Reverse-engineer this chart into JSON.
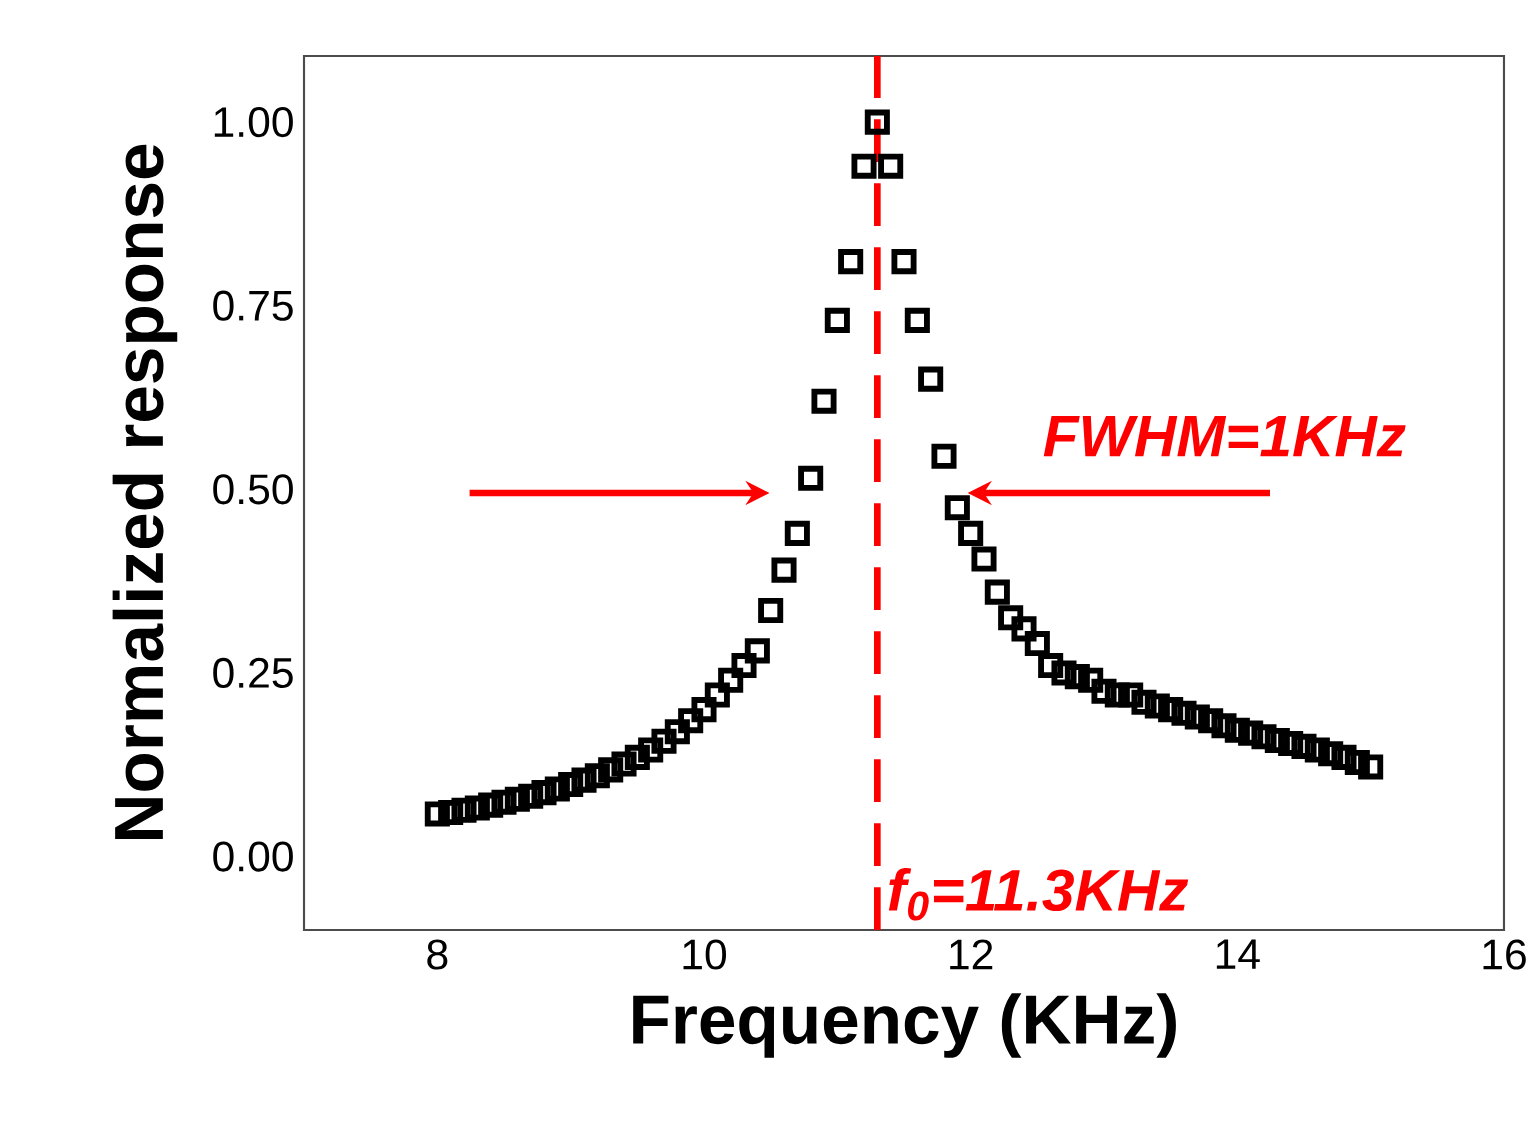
{
  "chart_data": {
    "type": "scatter",
    "xlabel": "Frequency (KHz)",
    "ylabel": "Normalized response",
    "x": [
      8.0,
      8.1,
      8.2,
      8.3,
      8.4,
      8.5,
      8.6,
      8.7,
      8.8,
      8.9,
      9.0,
      9.1,
      9.2,
      9.3,
      9.4,
      9.5,
      9.6,
      9.7,
      9.8,
      9.9,
      10.0,
      10.1,
      10.2,
      10.3,
      10.4,
      10.5,
      10.6,
      10.7,
      10.8,
      10.9,
      11.0,
      11.1,
      11.2,
      11.3,
      11.4,
      11.5,
      11.6,
      11.7,
      11.8,
      11.9,
      12.0,
      12.1,
      12.2,
      12.3,
      12.4,
      12.5,
      12.6,
      12.7,
      12.8,
      12.9,
      13.0,
      13.1,
      13.2,
      13.3,
      13.4,
      13.5,
      13.6,
      13.7,
      13.8,
      13.9,
      14.0,
      14.1,
      14.2,
      14.3,
      14.4,
      14.5,
      14.6,
      14.7,
      14.8,
      14.9,
      15.0
    ],
    "series": [
      {
        "color": "#000000",
        "values": [
          0.058,
          0.06,
          0.063,
          0.066,
          0.07,
          0.074,
          0.078,
          0.082,
          0.087,
          0.092,
          0.098,
          0.104,
          0.11,
          0.118,
          0.126,
          0.135,
          0.145,
          0.157,
          0.17,
          0.185,
          0.2,
          0.22,
          0.24,
          0.26,
          0.28,
          0.335,
          0.39,
          0.44,
          0.515,
          0.62,
          0.73,
          0.81,
          0.94,
          1.0,
          0.94,
          0.81,
          0.73,
          0.65,
          0.545,
          0.475,
          0.44,
          0.405,
          0.36,
          0.325,
          0.31,
          0.29,
          0.26,
          0.25,
          0.245,
          0.24,
          0.225,
          0.22,
          0.22,
          0.21,
          0.205,
          0.2,
          0.195,
          0.19,
          0.185,
          0.178,
          0.172,
          0.168,
          0.163,
          0.158,
          0.154,
          0.15,
          0.145,
          0.14,
          0.135,
          0.128,
          0.122
        ]
      }
    ],
    "marker": "square",
    "xlim": [
      7,
      16
    ],
    "xticks": [
      8,
      10,
      12,
      14,
      16
    ],
    "ylim": [
      -0.1,
      1.09
    ],
    "yticks": [
      {
        "value": 0,
        "label": "0.00"
      },
      {
        "value": 0.25,
        "label": "0.25"
      },
      {
        "value": 0.5,
        "label": "0.50"
      },
      {
        "value": 0.75,
        "label": "0.75"
      },
      {
        "value": 1.0,
        "label": "1.00"
      }
    ],
    "ref_lines": [
      {
        "axis": "x",
        "value": 11.3,
        "label": "f$_{0}$=11.3KHz",
        "color": "#ff0000",
        "line_style": "dashed"
      }
    ],
    "annotations": [
      "FWHM=1KHz"
    ]
  }
}
